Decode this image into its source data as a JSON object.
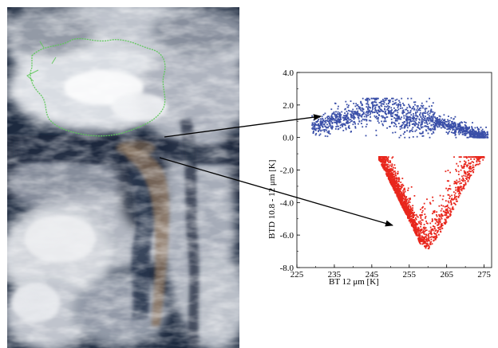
{
  "satellite_image": {
    "description_icon": "satellite-cloud-image",
    "coastline_color": "#5fc85a",
    "ash_plume_color": "#8a7058"
  },
  "chart_data": {
    "type": "scatter",
    "xlabel": "BT  12 μm  [K]",
    "ylabel": "BTD 10.8 - 12 μm [K]",
    "xlim": [
      225,
      277
    ],
    "ylim": [
      -8.0,
      4.0
    ],
    "xticks": [
      225,
      235,
      245,
      255,
      265,
      275
    ],
    "yticks": [
      -8.0,
      -6.0,
      -4.0,
      -2.0,
      0.0,
      2.0,
      4.0
    ],
    "ytick_labels": [
      "-8.0",
      "-6.0",
      "-4.0",
      "-2.0",
      "0.0",
      "2.0",
      "4.0"
    ],
    "xtick_labels": [
      "225",
      "235",
      "245",
      "255",
      "265",
      "275"
    ],
    "grid": false,
    "series": [
      {
        "color": "#3a4fa8",
        "x_range": [
          229,
          276
        ],
        "y_range": [
          0.0,
          2.4
        ],
        "point_count": 1500,
        "shape": "arch",
        "profile": [
          [
            229,
            0.6
          ],
          [
            235,
            1.0
          ],
          [
            240,
            1.3
          ],
          [
            245,
            1.8
          ],
          [
            250,
            1.6
          ],
          [
            255,
            1.2
          ],
          [
            260,
            1.1
          ],
          [
            265,
            0.8
          ],
          [
            270,
            0.4
          ],
          [
            275,
            0.05
          ]
        ]
      },
      {
        "color": "#e8261c",
        "x_range": [
          247,
          275
        ],
        "y_range": [
          -7.6,
          -1.2
        ],
        "point_count": 1800,
        "shape": "v",
        "profile": [
          [
            247,
            -1.4
          ],
          [
            250,
            -2.8
          ],
          [
            253,
            -4.2
          ],
          [
            256,
            -5.6
          ],
          [
            258,
            -6.6
          ],
          [
            260,
            -6.9
          ],
          [
            263,
            -6.0
          ],
          [
            266,
            -4.8
          ],
          [
            270,
            -3.0
          ],
          [
            273,
            -1.8
          ],
          [
            275,
            -1.4
          ]
        ]
      }
    ],
    "annotations": [
      {
        "type": "arrow",
        "from": "satellite-image-cloud-region",
        "to_data": [
          236,
          1.2
        ]
      },
      {
        "type": "arrow",
        "from": "satellite-image-ash-region",
        "to_data": [
          253,
          -5.2
        ]
      }
    ]
  }
}
